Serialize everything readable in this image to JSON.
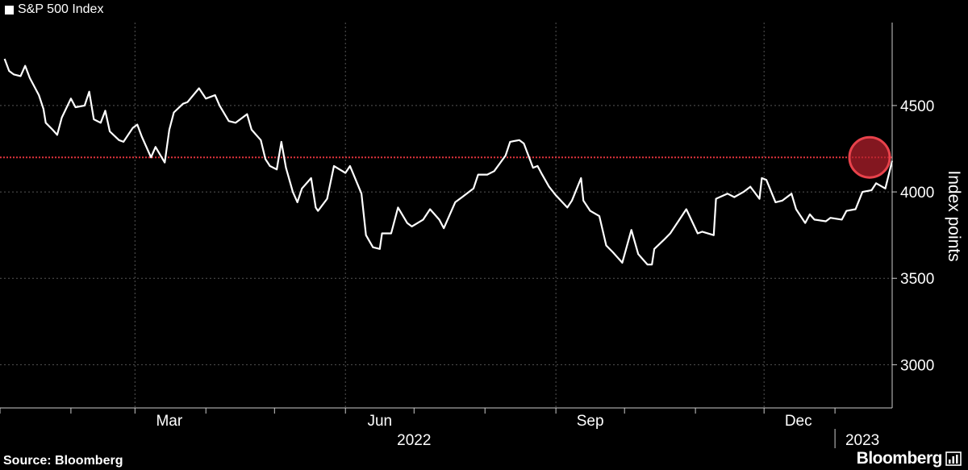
{
  "colors": {
    "background": "#000000",
    "line": "#ffffff",
    "grid": "#555555",
    "threshold": "#e0333c",
    "highlight_fill": "#b5202c",
    "highlight_stroke": "#e8424b"
  },
  "legend": {
    "label": "S&P 500 Index"
  },
  "source": "Source: Bloomberg",
  "brand": {
    "name": "Bloomberg",
    "icon": "bloomberg-terminal-icon"
  },
  "chart_data": {
    "type": "line",
    "title": "",
    "ylabel": "Index points",
    "xlabel": "",
    "ylim": [
      2750,
      4980
    ],
    "xlim": [
      "2022-01-01",
      "2023-01-26"
    ],
    "yticks": [
      3000,
      3500,
      4000,
      4500
    ],
    "yticks_labels": [
      "3000",
      "3500",
      "4000",
      "4500"
    ],
    "x_month_labels": [
      {
        "date": "2022-03-01",
        "label": "Mar"
      },
      {
        "date": "2022-06-01",
        "label": "Jun"
      },
      {
        "date": "2022-09-01",
        "label": "Sep"
      },
      {
        "date": "2022-12-01",
        "label": "Dec"
      }
    ],
    "x_year_labels": [
      {
        "date": "2022-07-01",
        "label": "2022"
      },
      {
        "date": "2023-01-13",
        "label": "2023"
      }
    ],
    "year_divider": "2023-01-01",
    "grid": true,
    "legend_position": "top-left",
    "threshold_line": 4200,
    "highlight": {
      "x": "2023-01-26",
      "y": 4200
    },
    "series": [
      {
        "name": "S&P 500 Index",
        "x": [
          "2022-01-03",
          "2022-01-05",
          "2022-01-07",
          "2022-01-10",
          "2022-01-12",
          "2022-01-14",
          "2022-01-18",
          "2022-01-20",
          "2022-01-21",
          "2022-01-24",
          "2022-01-26",
          "2022-01-28",
          "2022-02-01",
          "2022-02-03",
          "2022-02-07",
          "2022-02-09",
          "2022-02-11",
          "2022-02-14",
          "2022-02-16",
          "2022-02-18",
          "2022-02-22",
          "2022-02-24",
          "2022-02-28",
          "2022-03-02",
          "2022-03-04",
          "2022-03-08",
          "2022-03-10",
          "2022-03-14",
          "2022-03-16",
          "2022-03-18",
          "2022-03-22",
          "2022-03-24",
          "2022-03-29",
          "2022-04-01",
          "2022-04-05",
          "2022-04-07",
          "2022-04-11",
          "2022-04-14",
          "2022-04-19",
          "2022-04-21",
          "2022-04-25",
          "2022-04-27",
          "2022-04-29",
          "2022-05-02",
          "2022-05-04",
          "2022-05-06",
          "2022-05-09",
          "2022-05-11",
          "2022-05-13",
          "2022-05-17",
          "2022-05-19",
          "2022-05-20",
          "2022-05-24",
          "2022-05-27",
          "2022-06-01",
          "2022-06-03",
          "2022-06-08",
          "2022-06-10",
          "2022-06-13",
          "2022-06-16",
          "2022-06-17",
          "2022-06-21",
          "2022-06-24",
          "2022-06-28",
          "2022-06-30",
          "2022-07-05",
          "2022-07-08",
          "2022-07-12",
          "2022-07-14",
          "2022-07-19",
          "2022-07-22",
          "2022-07-27",
          "2022-07-29",
          "2022-08-02",
          "2022-08-05",
          "2022-08-10",
          "2022-08-12",
          "2022-08-16",
          "2022-08-18",
          "2022-08-22",
          "2022-08-24",
          "2022-08-26",
          "2022-08-29",
          "2022-09-01",
          "2022-09-06",
          "2022-09-08",
          "2022-09-12",
          "2022-09-13",
          "2022-09-16",
          "2022-09-20",
          "2022-09-23",
          "2022-09-26",
          "2022-09-30",
          "2022-10-04",
          "2022-10-07",
          "2022-10-11",
          "2022-10-13",
          "2022-10-14",
          "2022-10-18",
          "2022-10-21",
          "2022-10-26",
          "2022-10-28",
          "2022-11-02",
          "2022-11-04",
          "2022-11-09",
          "2022-11-10",
          "2022-11-15",
          "2022-11-18",
          "2022-11-22",
          "2022-11-25",
          "2022-11-29",
          "2022-11-30",
          "2022-12-02",
          "2022-12-06",
          "2022-12-09",
          "2022-12-13",
          "2022-12-15",
          "2022-12-19",
          "2022-12-21",
          "2022-12-23",
          "2022-12-28",
          "2022-12-30",
          "2023-01-04",
          "2023-01-06",
          "2023-01-10",
          "2023-01-13",
          "2023-01-17",
          "2023-01-19",
          "2023-01-23",
          "2023-01-26"
        ],
        "y": [
          4770,
          4700,
          4680,
          4670,
          4730,
          4660,
          4560,
          4480,
          4400,
          4360,
          4330,
          4430,
          4540,
          4490,
          4500,
          4580,
          4420,
          4400,
          4470,
          4350,
          4300,
          4290,
          4370,
          4390,
          4320,
          4200,
          4260,
          4170,
          4360,
          4460,
          4510,
          4520,
          4600,
          4540,
          4560,
          4500,
          4410,
          4400,
          4450,
          4360,
          4300,
          4190,
          4150,
          4130,
          4290,
          4140,
          4000,
          3940,
          4020,
          4080,
          3910,
          3890,
          3960,
          4150,
          4110,
          4150,
          3990,
          3750,
          3680,
          3670,
          3760,
          3760,
          3910,
          3820,
          3800,
          3840,
          3900,
          3840,
          3790,
          3940,
          3970,
          4020,
          4100,
          4100,
          4120,
          4210,
          4290,
          4300,
          4280,
          4140,
          4150,
          4100,
          4030,
          3980,
          3910,
          3950,
          4080,
          3950,
          3890,
          3860,
          3690,
          3650,
          3590,
          3780,
          3640,
          3580,
          3580,
          3670,
          3720,
          3760,
          3860,
          3900,
          3760,
          3770,
          3750,
          3960,
          3990,
          3970,
          4000,
          4030,
          3960,
          4080,
          4070,
          3940,
          3950,
          3990,
          3900,
          3820,
          3870,
          3840,
          3830,
          3850,
          3840,
          3890,
          3900,
          4000,
          4010,
          4050,
          4020,
          4180
        ]
      }
    ]
  }
}
